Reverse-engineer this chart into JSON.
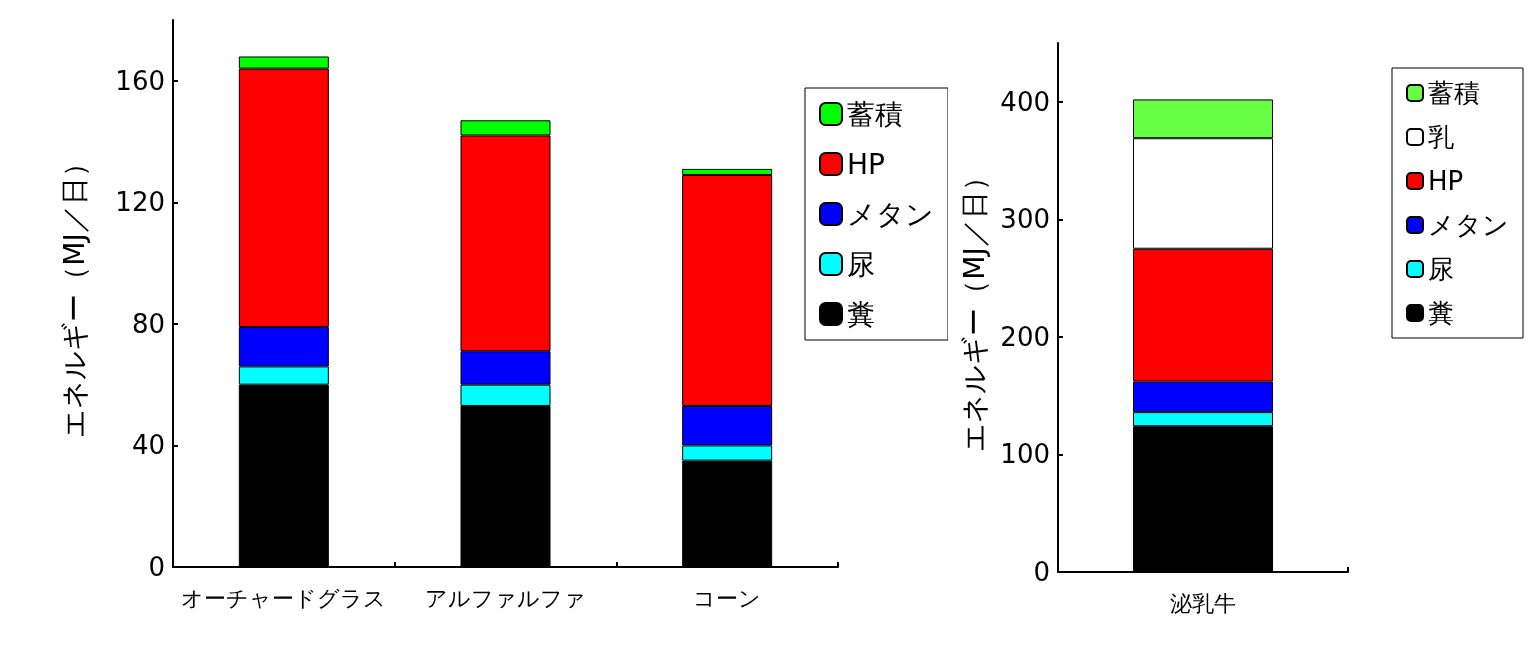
{
  "chart_data": [
    {
      "type": "bar",
      "stacked": true,
      "ylabel": "エネルギー（MJ／日）",
      "categories": [
        "オーチャードグラス",
        "アルファルファ",
        "コーン"
      ],
      "ylim": [
        0,
        180
      ],
      "yticks": [
        0,
        40,
        80,
        120,
        160
      ],
      "legend": "right",
      "grid": false,
      "series": [
        {
          "name": "糞",
          "color": "#000000",
          "values": [
            60,
            53,
            35
          ]
        },
        {
          "name": "尿",
          "color": "#00ffff",
          "values": [
            6,
            7,
            5
          ]
        },
        {
          "name": "メタン",
          "color": "#0000ff",
          "values": [
            13,
            11,
            13
          ]
        },
        {
          "name": "HP",
          "color": "#ff0000",
          "values": [
            85,
            71,
            76
          ]
        },
        {
          "name": "蓄積",
          "color": "#00ff00",
          "values": [
            4,
            5,
            2
          ]
        }
      ]
    },
    {
      "type": "bar",
      "stacked": true,
      "ylabel": "エネルギー（MJ／日）",
      "categories": [
        "泌乳牛"
      ],
      "ylim": [
        0,
        450
      ],
      "yticks": [
        0,
        100,
        200,
        300,
        400
      ],
      "legend": "top right",
      "grid": false,
      "series": [
        {
          "name": "糞",
          "color": "#000000",
          "values": [
            124
          ]
        },
        {
          "name": "尿",
          "color": "#00ffff",
          "values": [
            12
          ]
        },
        {
          "name": "メタン",
          "color": "#0000ff",
          "values": [
            26
          ]
        },
        {
          "name": "HP",
          "color": "#ff0000",
          "values": [
            113
          ]
        },
        {
          "name": "乳",
          "color": "#ffffff",
          "values": [
            94
          ]
        },
        {
          "name": "蓄積",
          "color": "#66ff44",
          "values": [
            33
          ]
        }
      ]
    }
  ]
}
